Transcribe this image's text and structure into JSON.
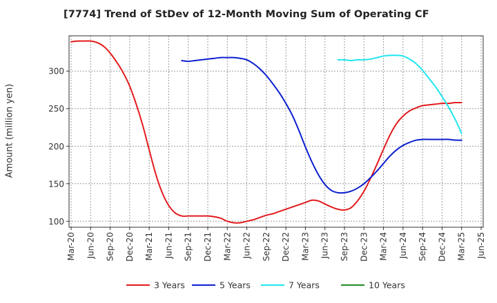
{
  "chart_data": {
    "type": "line",
    "title": "[7774]  Trend of StDev of 12-Month Moving Sum of Operating CF",
    "ylabel": "Amount (million yen)",
    "xlabel": "",
    "ylim": [
      92,
      347
    ],
    "yticks": [
      100,
      150,
      200,
      250,
      300
    ],
    "x_categories": [
      "Mar-20",
      "Jun-20",
      "Sep-20",
      "Dec-20",
      "Mar-21",
      "Jun-21",
      "Sep-21",
      "Dec-21",
      "Mar-22",
      "Jun-22",
      "Sep-22",
      "Dec-22",
      "Mar-23",
      "Jun-23",
      "Sep-23",
      "Dec-23",
      "Mar-24",
      "Jun-24",
      "Sep-24",
      "Dec-24",
      "Mar-25",
      "Jun-25"
    ],
    "grid": true,
    "legend_position": "bottom",
    "series": [
      {
        "name": "3 Years",
        "color": "#e31a1c",
        "points": [
          [
            "Mar-20",
            339
          ],
          [
            "Apr-20",
            340
          ],
          [
            "May-20",
            340
          ],
          [
            "Jun-20",
            340
          ],
          [
            "Jul-20",
            338
          ],
          [
            "Aug-20",
            333
          ],
          [
            "Sep-20",
            324
          ],
          [
            "Oct-20",
            312
          ],
          [
            "Nov-20",
            298
          ],
          [
            "Dec-20",
            280
          ],
          [
            "Jan-21",
            256
          ],
          [
            "Feb-21",
            228
          ],
          [
            "Mar-21",
            195
          ],
          [
            "Apr-21",
            163
          ],
          [
            "May-21",
            138
          ],
          [
            "Jun-21",
            121
          ],
          [
            "Jul-21",
            111
          ],
          [
            "Aug-21",
            107
          ],
          [
            "Sep-21",
            107
          ],
          [
            "Oct-21",
            107
          ],
          [
            "Nov-21",
            107
          ],
          [
            "Dec-21",
            107
          ],
          [
            "Jan-22",
            106
          ],
          [
            "Feb-22",
            104
          ],
          [
            "Mar-22",
            100
          ],
          [
            "Apr-22",
            98
          ],
          [
            "May-22",
            98
          ],
          [
            "Jun-22",
            100
          ],
          [
            "Jul-22",
            102
          ],
          [
            "Aug-22",
            105
          ],
          [
            "Sep-22",
            108
          ],
          [
            "Oct-22",
            110
          ],
          [
            "Nov-22",
            113
          ],
          [
            "Dec-22",
            116
          ],
          [
            "Jan-23",
            119
          ],
          [
            "Feb-23",
            122
          ],
          [
            "Mar-23",
            125
          ],
          [
            "Apr-23",
            128
          ],
          [
            "May-23",
            127
          ],
          [
            "Jun-23",
            123
          ],
          [
            "Jul-23",
            119
          ],
          [
            "Aug-23",
            116
          ],
          [
            "Sep-23",
            115
          ],
          [
            "Oct-23",
            118
          ],
          [
            "Nov-23",
            127
          ],
          [
            "Dec-23",
            140
          ],
          [
            "Jan-24",
            157
          ],
          [
            "Feb-24",
            176
          ],
          [
            "Mar-24",
            196
          ],
          [
            "Apr-24",
            215
          ],
          [
            "May-24",
            230
          ],
          [
            "Jun-24",
            240
          ],
          [
            "Jul-24",
            247
          ],
          [
            "Aug-24",
            251
          ],
          [
            "Sep-24",
            254
          ],
          [
            "Oct-24",
            255
          ],
          [
            "Nov-24",
            256
          ],
          [
            "Dec-24",
            257
          ],
          [
            "Jan-25",
            257
          ],
          [
            "Feb-25",
            258
          ],
          [
            "Mar-25",
            258
          ]
        ]
      },
      {
        "name": "5 Years",
        "color": "#0a1ecf",
        "points": [
          [
            "Aug-21",
            314
          ],
          [
            "Sep-21",
            313
          ],
          [
            "Oct-21",
            314
          ],
          [
            "Nov-21",
            315
          ],
          [
            "Dec-21",
            316
          ],
          [
            "Jan-22",
            317
          ],
          [
            "Feb-22",
            318
          ],
          [
            "Mar-22",
            318
          ],
          [
            "Apr-22",
            318
          ],
          [
            "May-22",
            317
          ],
          [
            "Jun-22",
            315
          ],
          [
            "Jul-22",
            310
          ],
          [
            "Aug-22",
            303
          ],
          [
            "Sep-22",
            294
          ],
          [
            "Oct-22",
            283
          ],
          [
            "Nov-22",
            271
          ],
          [
            "Dec-22",
            257
          ],
          [
            "Jan-23",
            241
          ],
          [
            "Feb-23",
            221
          ],
          [
            "Mar-23",
            199
          ],
          [
            "Apr-23",
            179
          ],
          [
            "May-23",
            162
          ],
          [
            "Jun-23",
            149
          ],
          [
            "Jul-23",
            141
          ],
          [
            "Aug-23",
            138
          ],
          [
            "Sep-23",
            138
          ],
          [
            "Oct-23",
            140
          ],
          [
            "Nov-23",
            144
          ],
          [
            "Dec-23",
            150
          ],
          [
            "Jan-24",
            158
          ],
          [
            "Feb-24",
            167
          ],
          [
            "Mar-24",
            177
          ],
          [
            "Apr-24",
            187
          ],
          [
            "May-24",
            195
          ],
          [
            "Jun-24",
            201
          ],
          [
            "Jul-24",
            205
          ],
          [
            "Aug-24",
            208
          ],
          [
            "Sep-24",
            209
          ],
          [
            "Oct-24",
            209
          ],
          [
            "Nov-24",
            209
          ],
          [
            "Dec-24",
            209
          ],
          [
            "Jan-25",
            209
          ],
          [
            "Feb-25",
            208
          ],
          [
            "Mar-25",
            208
          ]
        ]
      },
      {
        "name": "7 Years",
        "color": "#1ee6f0",
        "points": [
          [
            "Aug-23",
            315
          ],
          [
            "Sep-23",
            315
          ],
          [
            "Oct-23",
            314
          ],
          [
            "Nov-23",
            315
          ],
          [
            "Dec-23",
            315
          ],
          [
            "Jan-24",
            316
          ],
          [
            "Feb-24",
            318
          ],
          [
            "Mar-24",
            320
          ],
          [
            "Apr-24",
            321
          ],
          [
            "May-24",
            321
          ],
          [
            "Jun-24",
            320
          ],
          [
            "Jul-24",
            316
          ],
          [
            "Aug-24",
            310
          ],
          [
            "Sep-24",
            301
          ],
          [
            "Oct-24",
            290
          ],
          [
            "Nov-24",
            279
          ],
          [
            "Dec-24",
            266
          ],
          [
            "Jan-25",
            252
          ],
          [
            "Feb-25",
            236
          ],
          [
            "Mar-25",
            217
          ]
        ]
      },
      {
        "name": "10 Years",
        "color": "#228b22",
        "points": []
      }
    ]
  }
}
